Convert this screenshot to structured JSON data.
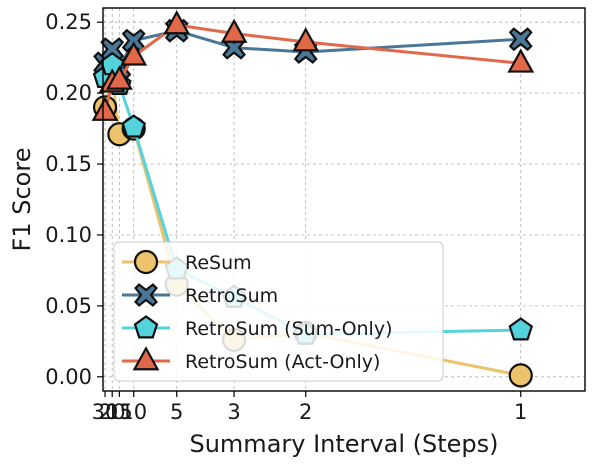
{
  "chart_data": {
    "type": "line",
    "xlabel": "Summary Interval (Steps)",
    "ylabel": "F1 Score",
    "x_scale": "reciprocal",
    "x_ticks": [
      30,
      20,
      15,
      10,
      5,
      3,
      2,
      1
    ],
    "x_tick_labels": [
      "30",
      "20",
      "15",
      "10",
      "5",
      "3",
      "2",
      "1"
    ],
    "xlim": [
      35,
      0.87
    ],
    "y_ticks": [
      0.0,
      0.05,
      0.1,
      0.15,
      0.2,
      0.25
    ],
    "y_tick_labels": [
      "0.00",
      "0.05",
      "0.10",
      "0.15",
      "0.20",
      "0.25"
    ],
    "ylim": [
      -0.01,
      0.26
    ],
    "grid": true,
    "legend_position": "lower-left",
    "x": [
      30,
      20,
      15,
      10,
      5,
      3,
      2,
      1
    ],
    "series": [
      {
        "name": "ReSum",
        "color": "#ecc26b",
        "marker": "circle",
        "values": [
          0.19,
          0.211,
          0.171,
          0.175,
          0.065,
          0.026,
          0.031,
          0.001
        ]
      },
      {
        "name": "RetroSum",
        "color": "#4a7797",
        "marker": "x",
        "values": [
          0.221,
          0.231,
          0.218,
          0.237,
          0.244,
          0.232,
          0.229,
          0.238
        ]
      },
      {
        "name": "RetroSum (Sum-Only)",
        "color": "#54d3dd",
        "marker": "pentagon",
        "values": [
          0.211,
          0.22,
          0.206,
          0.176,
          0.076,
          0.056,
          0.03,
          0.033
        ]
      },
      {
        "name": "RetroSum (Act-Only)",
        "color": "#e1694a",
        "marker": "triangle",
        "values": [
          0.187,
          0.207,
          0.209,
          0.226,
          0.248,
          0.242,
          0.236,
          0.221
        ]
      }
    ]
  }
}
